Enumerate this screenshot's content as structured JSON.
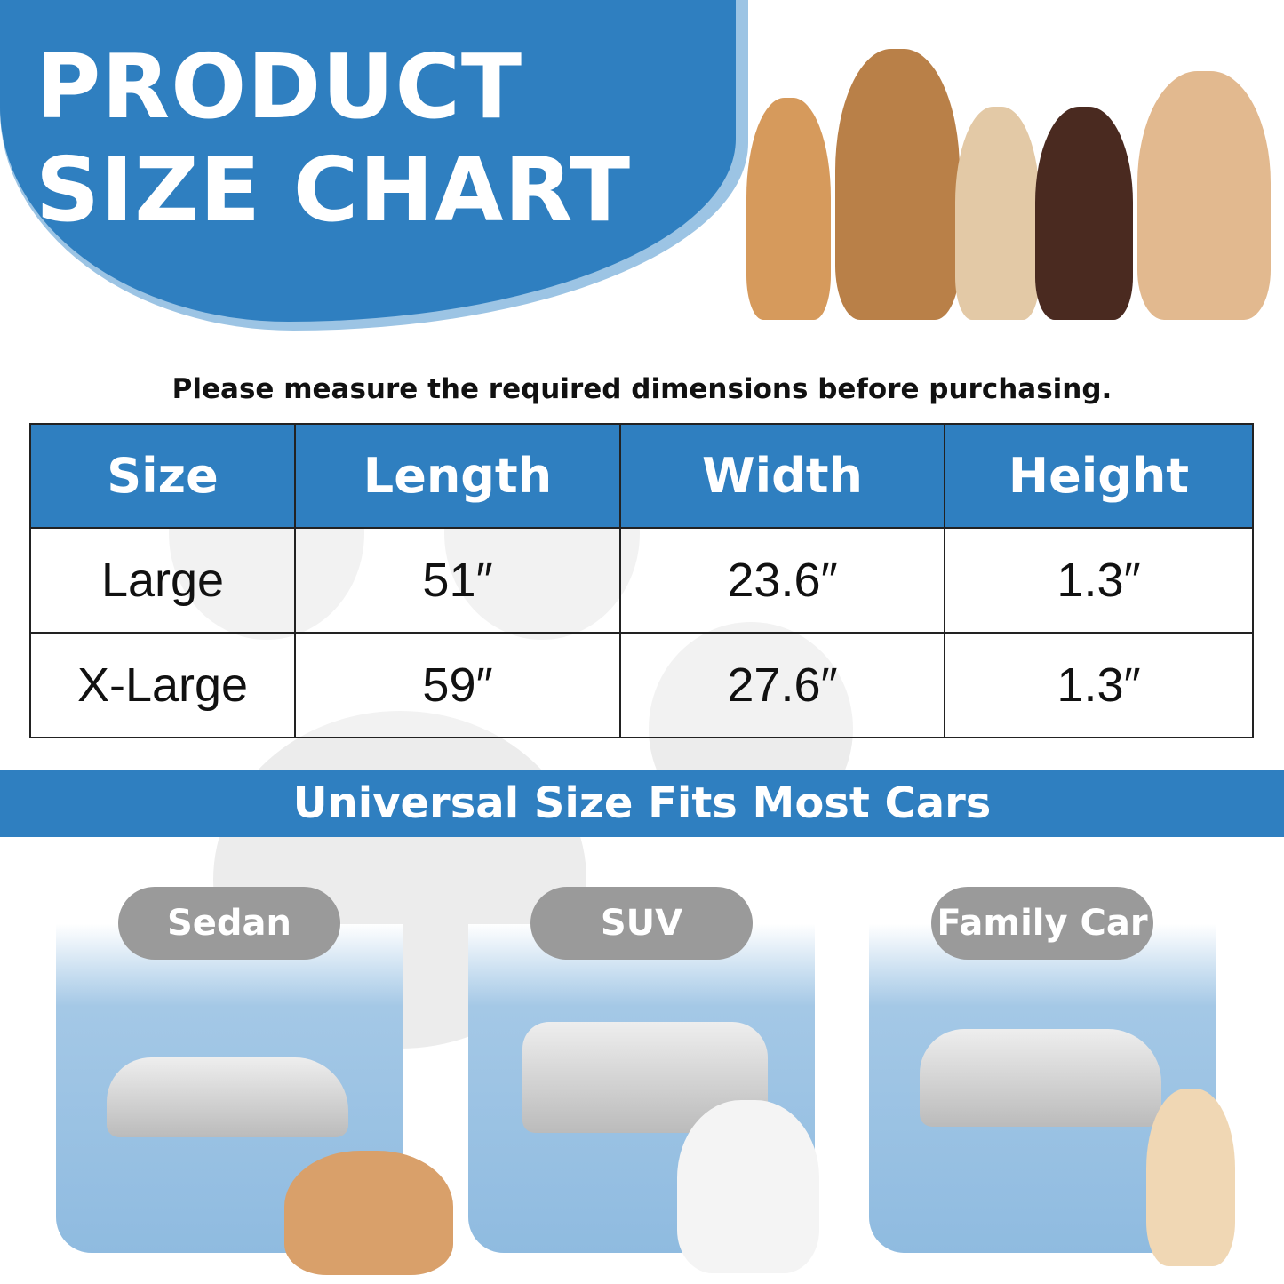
{
  "title": {
    "line1": "PRODUCT",
    "line2": "SIZE CHART"
  },
  "note": "Please measure the required dimensions before purchasing.",
  "table": {
    "headers": [
      "Size",
      "Length",
      "Width",
      "Height"
    ],
    "rows": [
      [
        "Large",
        "51″",
        "23.6″",
        "1.3″"
      ],
      [
        "X-Large",
        "59″",
        "27.6″",
        "1.3″"
      ]
    ]
  },
  "banner": "Universal Size Fits Most Cars",
  "cars": [
    {
      "label": "Sedan"
    },
    {
      "label": "SUV"
    },
    {
      "label": "Family Car"
    }
  ],
  "colors": {
    "brand_blue": "#2f7fc0",
    "pill_gray": "#9a9a9a"
  }
}
